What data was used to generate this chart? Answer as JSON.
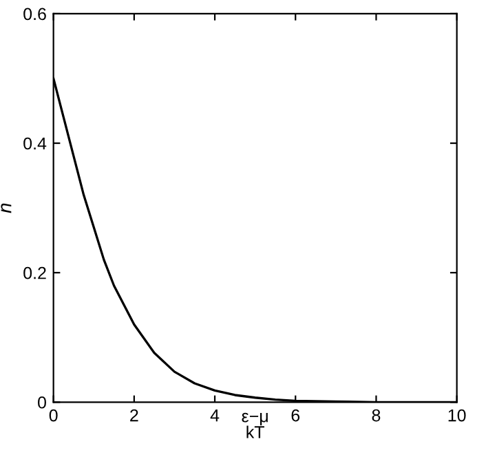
{
  "chart_data": {
    "type": "line",
    "xlabel": "ε−μ\nkT",
    "ylabel": "n",
    "x": [
      0,
      0.25,
      0.5,
      0.75,
      1,
      1.25,
      1.5,
      1.75,
      2,
      2.5,
      3,
      3.5,
      4,
      4.5,
      5,
      5.5,
      6,
      7,
      8,
      9,
      10
    ],
    "values": [
      0.5,
      0.44,
      0.38,
      0.32,
      0.27,
      0.22,
      0.18,
      0.15,
      0.12,
      0.076,
      0.047,
      0.029,
      0.018,
      0.011,
      0.007,
      0.004,
      0.002,
      0.001,
      0,
      0,
      0
    ],
    "color": "#000000",
    "xlim": [
      0,
      10
    ],
    "ylim": [
      0,
      0.6
    ],
    "xticks": [
      0,
      2,
      4,
      6,
      8,
      10
    ],
    "yticks": [
      0,
      0.2,
      0.4,
      0.6
    ],
    "grid": false,
    "marker": "none",
    "line_style": "solid"
  }
}
